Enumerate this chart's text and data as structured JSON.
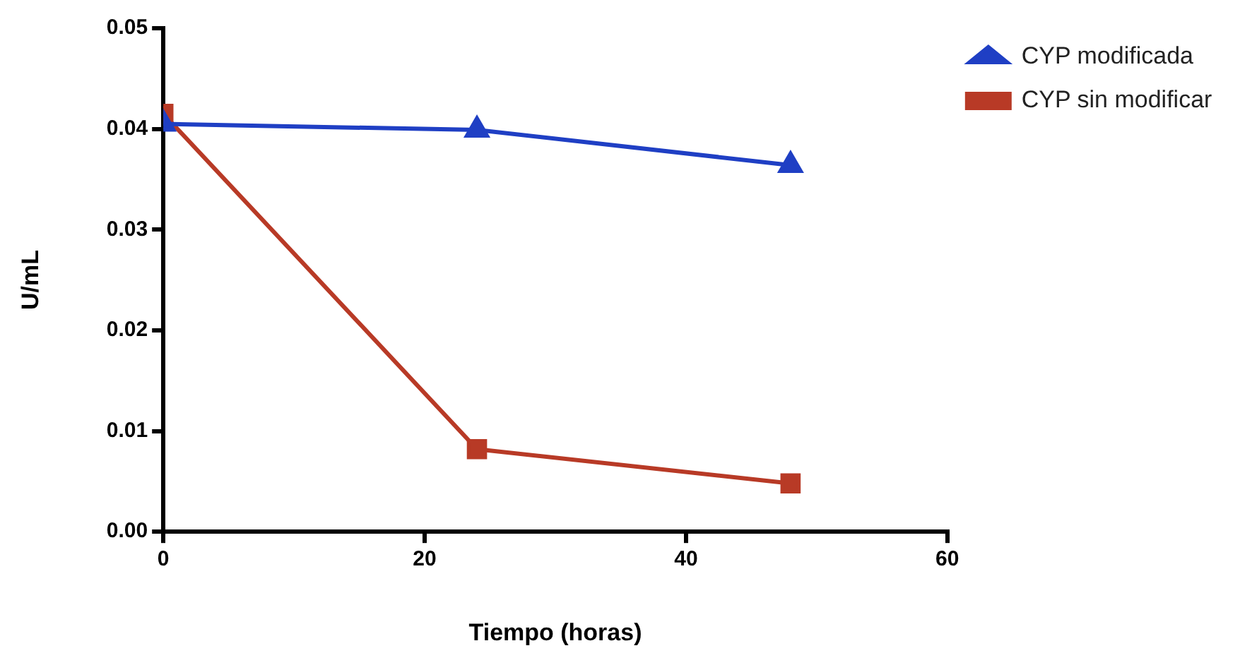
{
  "chart_data": {
    "type": "line",
    "xlabel": "Tiempo (horas)",
    "ylabel": "U/mL",
    "x": [
      0,
      24,
      48
    ],
    "xlim": [
      0,
      60
    ],
    "xticks": [
      0,
      20,
      40,
      60
    ],
    "ylim": [
      0,
      0.05
    ],
    "yticks": [
      {
        "value": 0,
        "label": "0.00"
      },
      {
        "value": 0.01,
        "label": "0.01"
      },
      {
        "value": 0.02,
        "label": "0.02"
      },
      {
        "value": 0.03,
        "label": "0.03"
      },
      {
        "value": 0.04,
        "label": "0.04"
      },
      {
        "value": 0.05,
        "label": "0.05"
      }
    ],
    "grid": false,
    "legend": "top right",
    "series": [
      {
        "name": "CYP modificada",
        "color": "#1f3fc4",
        "marker": "triangle",
        "values": [
          0.0405,
          0.0399,
          0.0364
        ]
      },
      {
        "name": "CYP sin modificar",
        "color": "#b83a26",
        "marker": "square",
        "values": [
          0.0415,
          0.0082,
          0.0048
        ]
      }
    ]
  }
}
